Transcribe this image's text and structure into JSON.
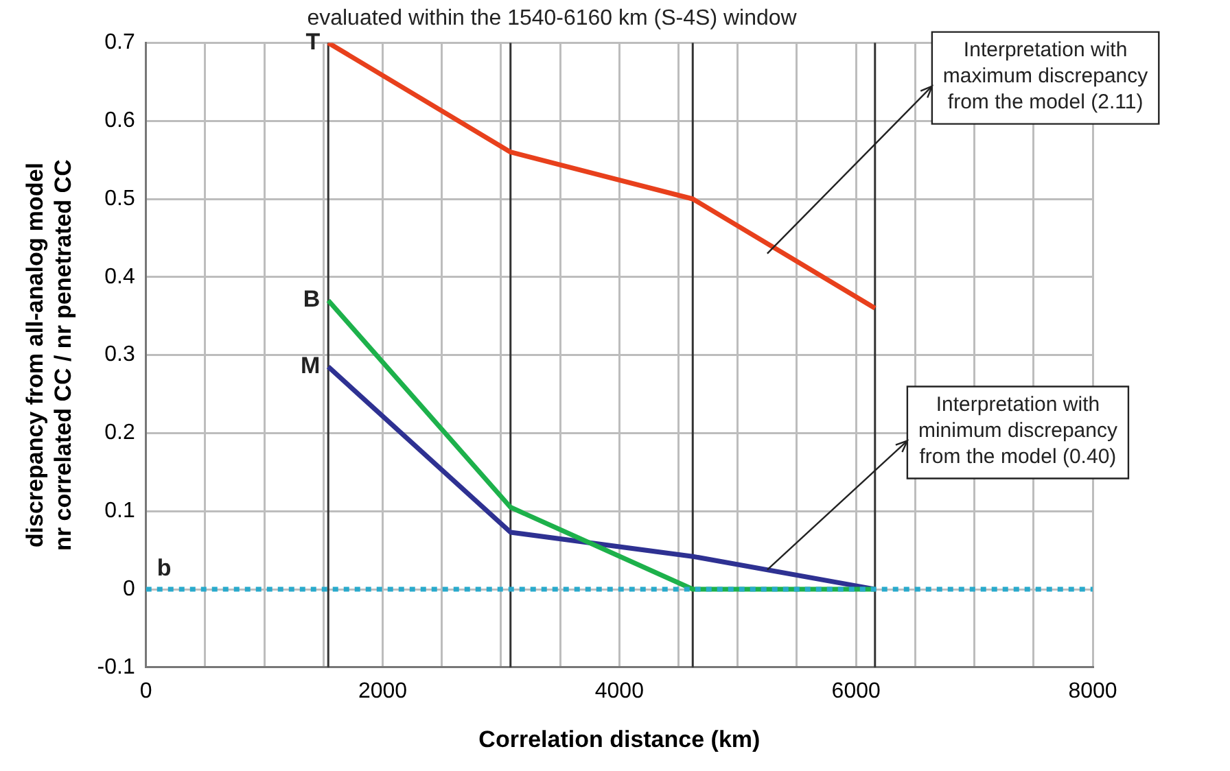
{
  "chart_data": {
    "type": "line",
    "title": "evaluated within the 1540-6160 km (S-4S) window",
    "xlabel": "Correlation distance (km)",
    "ylabel": "discrepancy from all-analog model\nnr correlated CC / nr penetrated CC",
    "series": [
      {
        "name": "T",
        "color": "#e8401c",
        "x": [
          1540,
          3080,
          4620,
          6160
        ],
        "values": [
          0.7,
          0.56,
          0.5,
          0.36
        ]
      },
      {
        "name": "B",
        "color": "#1db14b",
        "x": [
          1540,
          3080,
          4620,
          6160
        ],
        "values": [
          0.37,
          0.105,
          0,
          0
        ]
      },
      {
        "name": "M",
        "color": "#2e3192",
        "x": [
          1540,
          3080,
          4620,
          6160
        ],
        "values": [
          0.285,
          0.073,
          0.042,
          0
        ]
      },
      {
        "name": "b",
        "color": "#29aacc",
        "line_style": "dotted",
        "x": [
          0,
          8000
        ],
        "values": [
          0,
          0
        ]
      }
    ],
    "xlim": [
      0,
      8000
    ],
    "xticks": [
      0,
      {
        "value": 500,
        "label": null
      },
      {
        "value": 1000,
        "label": null
      },
      {
        "value": 1500,
        "label": null
      },
      2000,
      {
        "value": 2500,
        "label": null
      },
      {
        "value": 3000,
        "label": null
      },
      {
        "value": 3500,
        "label": null
      },
      4000,
      {
        "value": 4500,
        "label": null
      },
      {
        "value": 5000,
        "label": null
      },
      {
        "value": 5500,
        "label": null
      },
      6000,
      {
        "value": 6500,
        "label": null
      },
      {
        "value": 7000,
        "label": null
      },
      {
        "value": 7500,
        "label": null
      },
      8000
    ],
    "ylim": [
      -0.1,
      0.7
    ],
    "yticks": [
      -0.1,
      0,
      0.1,
      0.2,
      0.3,
      0.4,
      0.5,
      0.6,
      0.7
    ],
    "ref_lines": [
      {
        "axis": "x",
        "value": 1540,
        "color": "#333333"
      },
      {
        "axis": "x",
        "value": 3080,
        "color": "#333333"
      },
      {
        "axis": "x",
        "value": 4620,
        "color": "#333333"
      },
      {
        "axis": "x",
        "value": 6160,
        "color": "#333333"
      }
    ],
    "annotations": [
      {
        "text": "Interpretation with\nmaximum discrepancy\nfrom the model (2.11)",
        "x": 5250,
        "y": 0.43
      },
      {
        "text": "Interpretation with\nminimum discrepancy\nfrom the model (0.40)",
        "x": 5250,
        "y": 0.025
      }
    ],
    "grid": true,
    "legend": false,
    "marker": "none"
  }
}
